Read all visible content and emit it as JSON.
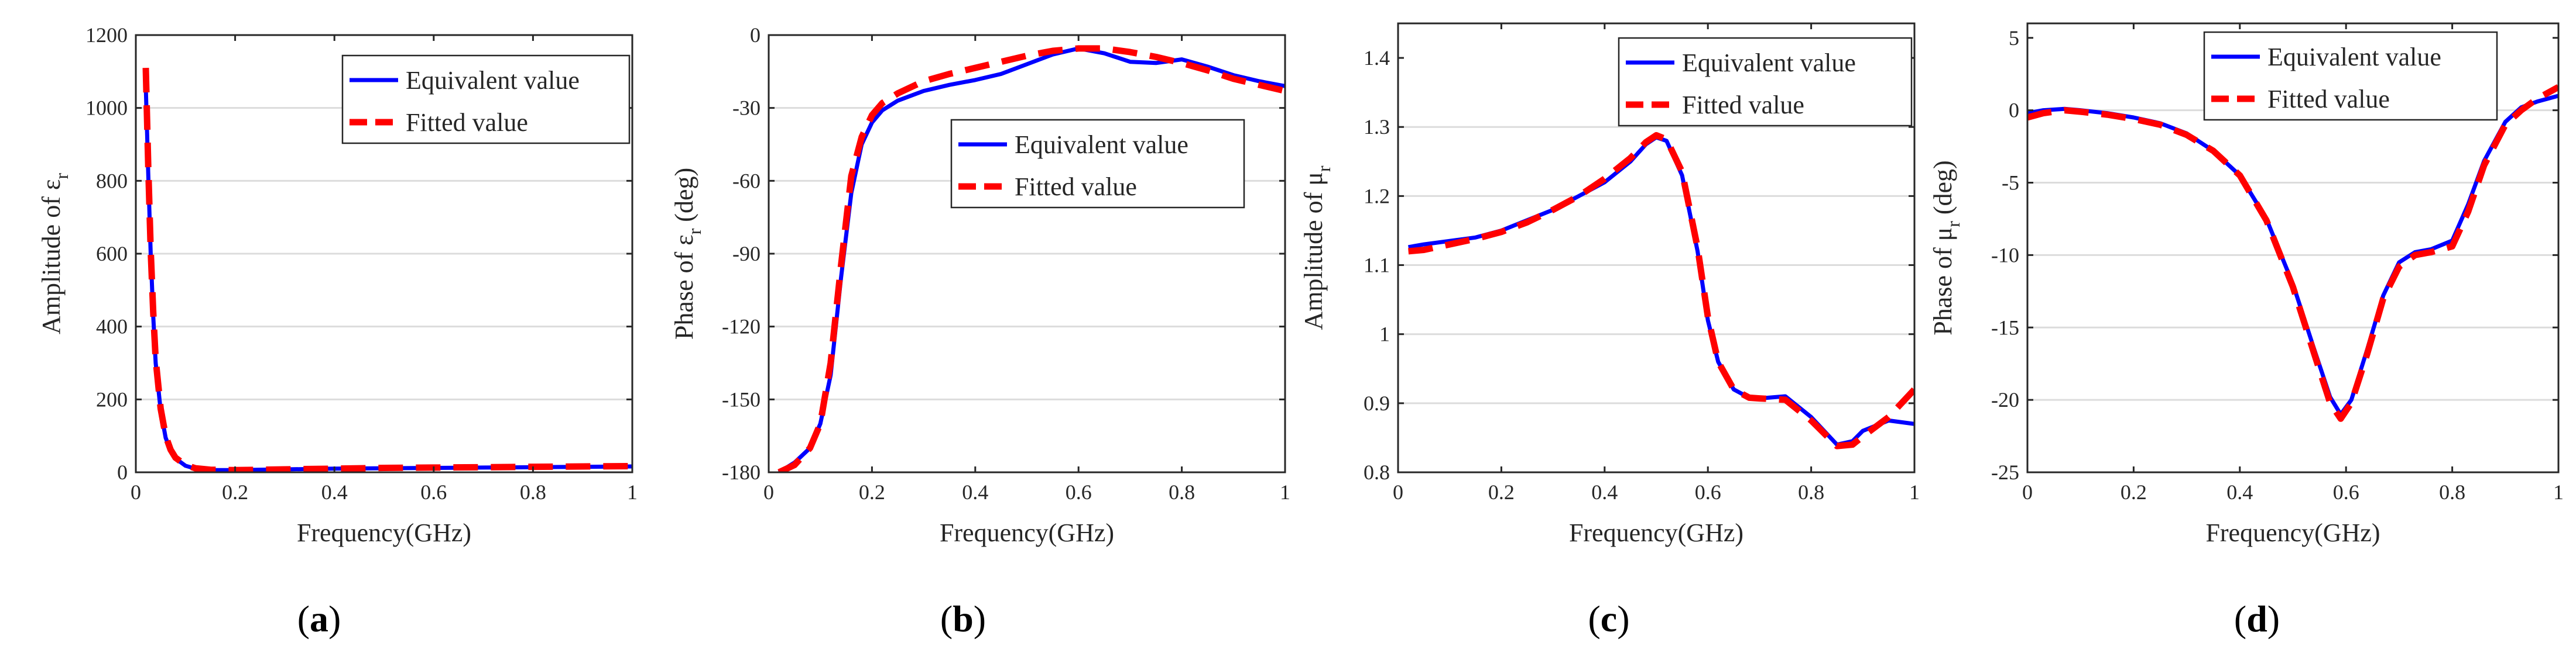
{
  "chart_data": [
    {
      "type": "line",
      "panel": "a",
      "caption": "(a)",
      "xlabel": "Frequency(GHz)",
      "ylabel": "Amplitude of ε",
      "ylabel_sub": "r",
      "xlim": [
        0,
        1
      ],
      "ylim": [
        0,
        1200
      ],
      "xticks": [
        0,
        0.2,
        0.4,
        0.6,
        0.8,
        1
      ],
      "xtick_labels": [
        "0",
        "0.2",
        "0.4",
        "0.6",
        "0.8",
        "1"
      ],
      "yticks": [
        0,
        200,
        400,
        600,
        800,
        1000,
        1200
      ],
      "ytick_labels": [
        "0",
        "200",
        "400",
        "600",
        "800",
        "1000",
        "1200"
      ],
      "grid": "horizontal",
      "legend": {
        "placement": "top-right",
        "entries": [
          "Equivalent value",
          "Fitted value"
        ]
      },
      "series": [
        {
          "name": "Equivalent value",
          "color": "#0000ff",
          "style": "solid",
          "x": [
            0.02,
            0.025,
            0.03,
            0.035,
            0.04,
            0.05,
            0.06,
            0.07,
            0.08,
            0.1,
            0.12,
            0.15,
            0.2,
            0.3,
            0.4,
            0.5,
            0.6,
            0.7,
            0.8,
            0.9,
            1.0
          ],
          "y": [
            1060,
            820,
            600,
            430,
            300,
            170,
            95,
            60,
            38,
            18,
            10,
            6,
            6,
            8,
            10,
            11,
            12,
            13,
            14,
            15,
            16
          ]
        },
        {
          "name": "Fitted value",
          "color": "#ff0000",
          "style": "dashed",
          "x": [
            0.02,
            0.025,
            0.03,
            0.035,
            0.04,
            0.05,
            0.06,
            0.07,
            0.08,
            0.1,
            0.12,
            0.15,
            0.2,
            0.3,
            0.4,
            0.5,
            0.6,
            0.7,
            0.8,
            0.9,
            1.0
          ],
          "y": [
            1110,
            840,
            610,
            440,
            310,
            175,
            100,
            62,
            40,
            20,
            11,
            7,
            6,
            8,
            10,
            12,
            13,
            14,
            15,
            16,
            17
          ]
        }
      ]
    },
    {
      "type": "line",
      "panel": "b",
      "caption": "(b)",
      "xlabel": "Frequency(GHz)",
      "ylabel": "Phase of ε",
      "ylabel_sub": "r",
      "ylabel_suffix": " (deg)",
      "xlim": [
        0,
        1
      ],
      "ylim": [
        -180,
        0
      ],
      "xticks": [
        0,
        0.2,
        0.4,
        0.6,
        0.8,
        1
      ],
      "xtick_labels": [
        "0",
        "0.2",
        "0.4",
        "0.6",
        "0.8",
        "1"
      ],
      "yticks": [
        -180,
        -150,
        -120,
        -90,
        -60,
        -30,
        0
      ],
      "ytick_labels": [
        "-180",
        "-150",
        "-120",
        "-90",
        "-60",
        "-30",
        "0"
      ],
      "grid": "horizontal",
      "legend": {
        "placement": "middle-right",
        "entries": [
          "Equivalent value",
          "Fitted value"
        ]
      },
      "series": [
        {
          "name": "Equivalent value",
          "color": "#0000ff",
          "style": "solid",
          "x": [
            0.02,
            0.05,
            0.08,
            0.1,
            0.12,
            0.14,
            0.16,
            0.18,
            0.2,
            0.22,
            0.25,
            0.3,
            0.35,
            0.4,
            0.45,
            0.5,
            0.55,
            0.6,
            0.65,
            0.7,
            0.75,
            0.8,
            0.85,
            0.9,
            0.95,
            1.0
          ],
          "y": [
            -180,
            -176,
            -170,
            -160,
            -140,
            -100,
            -65,
            -45,
            -36,
            -31,
            -27,
            -23,
            -20.5,
            -18.5,
            -16,
            -12,
            -8,
            -5.5,
            -7.5,
            -11,
            -11.5,
            -10,
            -13,
            -16.5,
            -19,
            -21
          ]
        },
        {
          "name": "Fitted value",
          "color": "#ff0000",
          "style": "dashed",
          "x": [
            0.02,
            0.05,
            0.08,
            0.1,
            0.12,
            0.14,
            0.16,
            0.18,
            0.2,
            0.22,
            0.25,
            0.3,
            0.35,
            0.4,
            0.45,
            0.5,
            0.55,
            0.6,
            0.65,
            0.7,
            0.75,
            0.8,
            0.85,
            0.9,
            0.95,
            1.0
          ],
          "y": [
            -180,
            -177,
            -170,
            -160,
            -135,
            -95,
            -58,
            -42,
            -33,
            -28,
            -24,
            -19,
            -16,
            -13.5,
            -11,
            -8.5,
            -6.5,
            -5.5,
            -5.5,
            -7,
            -9,
            -11.5,
            -14.5,
            -18,
            -20.5,
            -23
          ]
        }
      ]
    },
    {
      "type": "line",
      "panel": "c",
      "caption": "(c)",
      "xlabel": "Frequency(GHz)",
      "ylabel": "Amplitude of μ",
      "ylabel_sub": "r",
      "xlim": [
        0,
        1
      ],
      "ylim": [
        0.8,
        1.45
      ],
      "xticks": [
        0,
        0.2,
        0.4,
        0.6,
        0.8,
        1
      ],
      "xtick_labels": [
        "0",
        "0.2",
        "0.4",
        "0.6",
        "0.8",
        "1"
      ],
      "yticks": [
        0.8,
        0.9,
        1.0,
        1.1,
        1.2,
        1.3,
        1.4
      ],
      "ytick_labels": [
        "0.8",
        "0.9",
        "1",
        "1.1",
        "1.2",
        "1.3",
        "1.4"
      ],
      "grid": "horizontal",
      "legend": {
        "placement": "top-right",
        "entries": [
          "Equivalent value",
          "Fitted value"
        ]
      },
      "series": [
        {
          "name": "Equivalent value",
          "color": "#0000ff",
          "style": "solid",
          "x": [
            0.02,
            0.05,
            0.1,
            0.15,
            0.2,
            0.25,
            0.3,
            0.35,
            0.4,
            0.45,
            0.48,
            0.5,
            0.52,
            0.55,
            0.58,
            0.6,
            0.62,
            0.65,
            0.68,
            0.7,
            0.75,
            0.8,
            0.85,
            0.88,
            0.9,
            0.95,
            1.0
          ],
          "y": [
            1.126,
            1.13,
            1.135,
            1.14,
            1.15,
            1.165,
            1.18,
            1.2,
            1.22,
            1.25,
            1.275,
            1.285,
            1.28,
            1.23,
            1.12,
            1.02,
            0.96,
            0.92,
            0.908,
            0.907,
            0.91,
            0.88,
            0.84,
            0.845,
            0.86,
            0.875,
            0.87
          ]
        },
        {
          "name": "Fitted value",
          "color": "#ff0000",
          "style": "dashed",
          "x": [
            0.02,
            0.05,
            0.1,
            0.15,
            0.2,
            0.25,
            0.3,
            0.35,
            0.4,
            0.45,
            0.48,
            0.5,
            0.52,
            0.55,
            0.58,
            0.6,
            0.62,
            0.65,
            0.68,
            0.7,
            0.75,
            0.8,
            0.85,
            0.88,
            0.9,
            0.95,
            1.0
          ],
          "y": [
            1.12,
            1.122,
            1.13,
            1.138,
            1.148,
            1.162,
            1.18,
            1.2,
            1.225,
            1.255,
            1.278,
            1.288,
            1.282,
            1.235,
            1.125,
            1.025,
            0.96,
            0.92,
            0.908,
            0.907,
            0.905,
            0.875,
            0.838,
            0.84,
            0.852,
            0.88,
            0.92
          ]
        }
      ]
    },
    {
      "type": "line",
      "panel": "d",
      "caption": "(d)",
      "xlabel": "Frequency(GHz)",
      "ylabel": "Phase of μ",
      "ylabel_sub": "r",
      "ylabel_suffix": " (deg)",
      "xlim": [
        0,
        1
      ],
      "ylim": [
        -25,
        6
      ],
      "xticks": [
        0,
        0.2,
        0.4,
        0.6,
        0.8,
        1
      ],
      "xtick_labels": [
        "0",
        "0.2",
        "0.4",
        "0.6",
        "0.8",
        "1"
      ],
      "yticks": [
        -25,
        -20,
        -15,
        -10,
        -5,
        0,
        5
      ],
      "ytick_labels": [
        "-25",
        "-20",
        "-15",
        "-10",
        "-5",
        "0",
        "5"
      ],
      "grid": "horizontal",
      "legend": {
        "placement": "top-right",
        "entries": [
          "Equivalent value",
          "Fitted value"
        ]
      },
      "series": [
        {
          "name": "Equivalent value",
          "color": "#0000ff",
          "style": "solid",
          "x": [
            0.0,
            0.03,
            0.07,
            0.1,
            0.15,
            0.2,
            0.25,
            0.3,
            0.35,
            0.4,
            0.45,
            0.5,
            0.54,
            0.57,
            0.59,
            0.61,
            0.64,
            0.67,
            0.7,
            0.73,
            0.76,
            0.8,
            0.83,
            0.86,
            0.9,
            0.93,
            0.96,
            1.0
          ],
          "y": [
            -0.2,
            0.0,
            0.1,
            0.0,
            -0.2,
            -0.5,
            -0.9,
            -1.6,
            -2.8,
            -4.5,
            -7.5,
            -12.0,
            -16.5,
            -19.8,
            -21.0,
            -20.0,
            -16.5,
            -12.8,
            -10.5,
            -9.8,
            -9.6,
            -9.0,
            -6.5,
            -3.5,
            -0.8,
            0.2,
            0.6,
            1.0
          ]
        },
        {
          "name": "Fitted value",
          "color": "#ff0000",
          "style": "dashed",
          "x": [
            0.0,
            0.03,
            0.07,
            0.1,
            0.15,
            0.2,
            0.25,
            0.3,
            0.35,
            0.4,
            0.45,
            0.5,
            0.54,
            0.57,
            0.59,
            0.61,
            0.64,
            0.67,
            0.7,
            0.73,
            0.76,
            0.8,
            0.83,
            0.86,
            0.9,
            0.93,
            0.96,
            1.0
          ],
          "y": [
            -0.5,
            -0.2,
            0.0,
            -0.1,
            -0.3,
            -0.6,
            -1.0,
            -1.7,
            -2.8,
            -4.5,
            -7.6,
            -12.2,
            -16.8,
            -20.2,
            -21.3,
            -20.2,
            -16.8,
            -13.0,
            -10.8,
            -10.0,
            -9.8,
            -9.4,
            -7.0,
            -3.8,
            -1.0,
            0.0,
            0.8,
            1.6
          ]
        }
      ]
    }
  ]
}
